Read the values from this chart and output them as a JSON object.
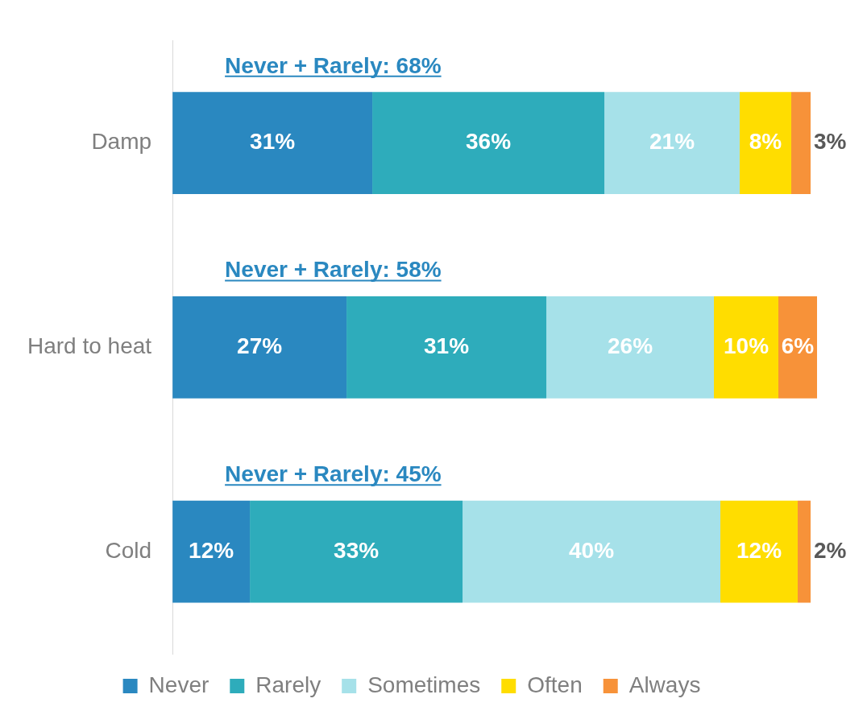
{
  "chart_data": {
    "type": "bar",
    "orientation": "horizontal",
    "stacked": true,
    "categories": [
      "Damp",
      "Hard to heat",
      "Cold"
    ],
    "series": [
      {
        "name": "Never",
        "color": "#2a88c0",
        "values": [
          31,
          27,
          12
        ],
        "value_labels": [
          "31%",
          "27%",
          "12%"
        ]
      },
      {
        "name": "Rarely",
        "color": "#2eacbb",
        "values": [
          36,
          31,
          33
        ],
        "value_labels": [
          "36%",
          "31%",
          "33%"
        ]
      },
      {
        "name": "Sometimes",
        "color": "#a6e1e9",
        "values": [
          21,
          26,
          40
        ],
        "value_labels": [
          "21%",
          "26%",
          "40%"
        ]
      },
      {
        "name": "Often",
        "color": "#ffdd00",
        "values": [
          8,
          10,
          12
        ],
        "value_labels": [
          "8%",
          "10%",
          "12%"
        ]
      },
      {
        "name": "Always",
        "color": "#f79239",
        "values": [
          3,
          6,
          2
        ],
        "value_labels": [
          "3%",
          "6%",
          "2%"
        ]
      }
    ],
    "xlim": [
      0,
      100
    ],
    "tick_labels": "y",
    "grid": false,
    "legend": "bottom",
    "annotations": [
      "Never + Rarely: 68%",
      "Never + Rarely: 58%",
      "Never + Rarely: 45%"
    ]
  }
}
